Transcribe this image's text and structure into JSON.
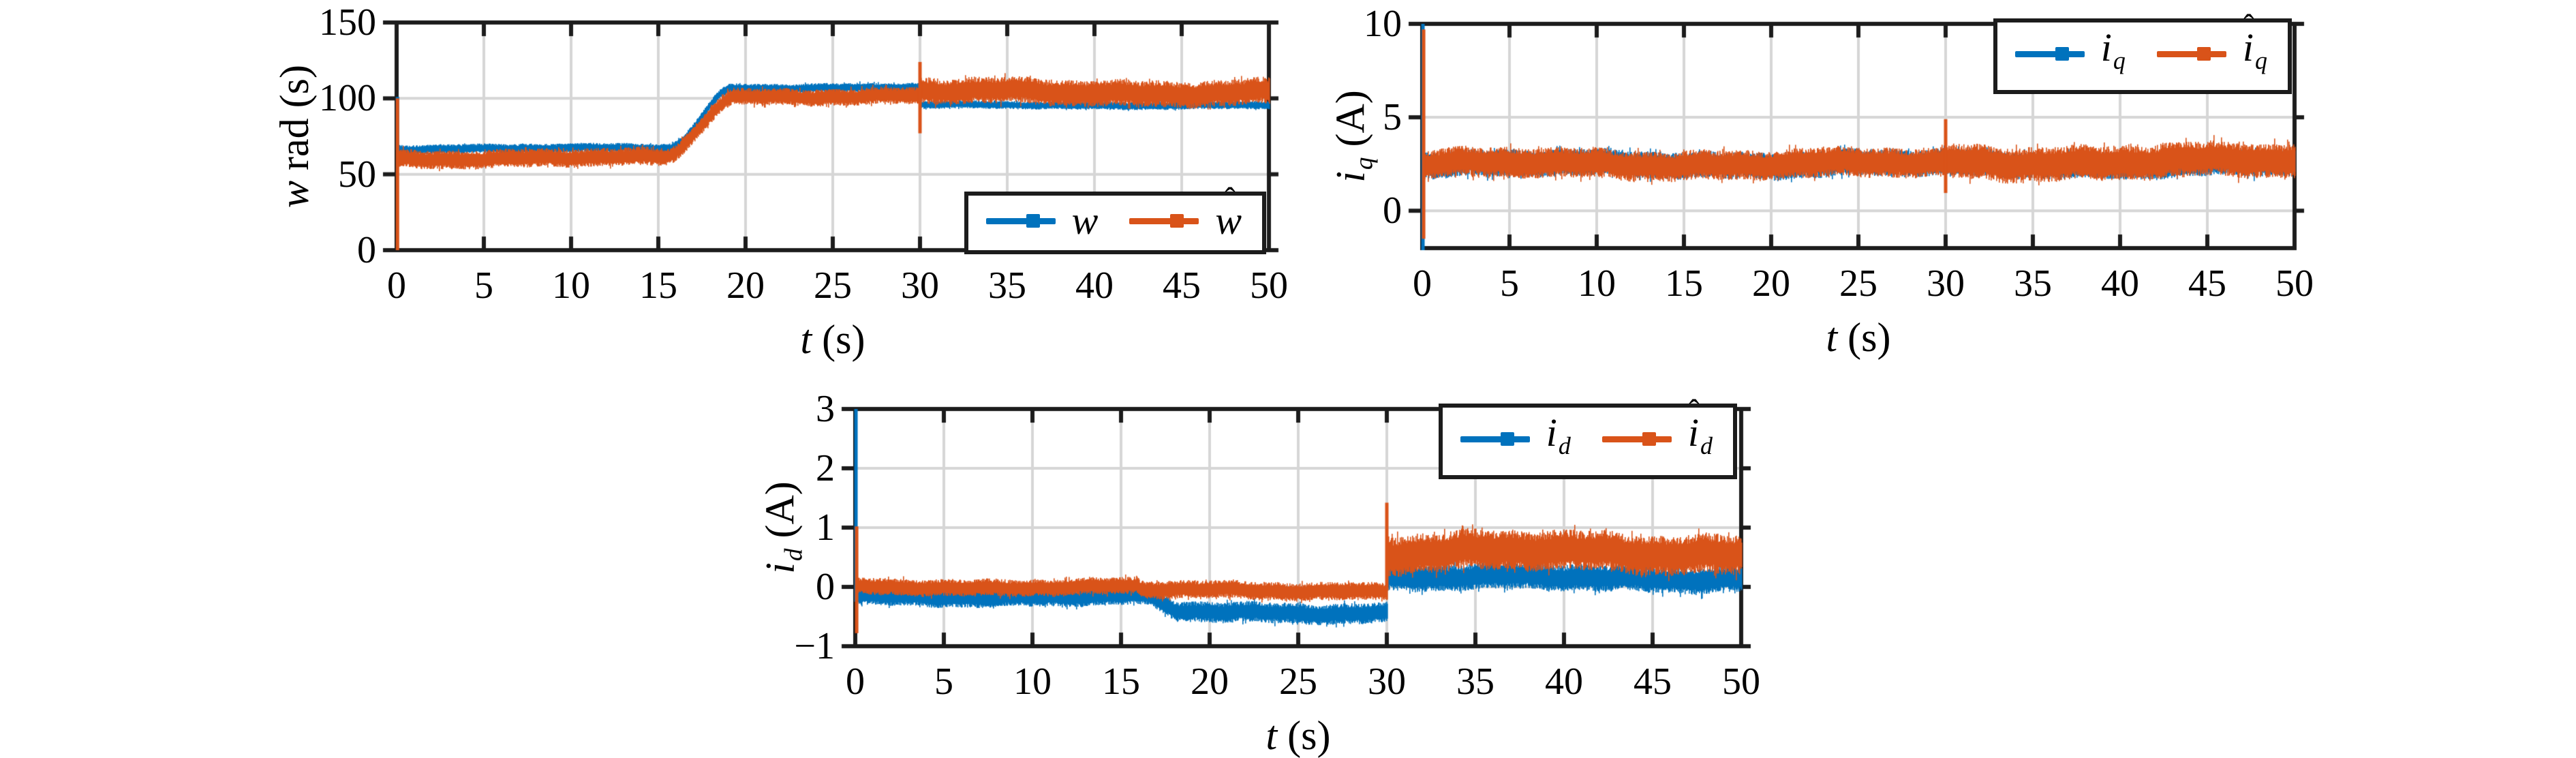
{
  "figure": {
    "background": "#ffffff"
  },
  "palette": {
    "blue": "#0072BD",
    "orange": "#D95319",
    "axis": "#1c1c1c",
    "grid": "#d6d6d6",
    "text": "#000000",
    "background": "#ffffff"
  },
  "chart_data": [
    {
      "id": "speed",
      "type": "line",
      "xlabel_parts": [
        {
          "text": "t",
          "italic": true
        },
        {
          "text": " (s)"
        }
      ],
      "ylabel_parts": [
        {
          "text": "w",
          "italic": true
        },
        {
          "text": " rad (s)"
        }
      ],
      "xlim": [
        0,
        50
      ],
      "ylim": [
        0,
        150
      ],
      "xticks": [
        0,
        5,
        10,
        15,
        20,
        25,
        30,
        35,
        40,
        45,
        50
      ],
      "yticks": [
        0,
        50,
        100,
        150
      ],
      "grid": true,
      "legend": {
        "position": "bottom-right",
        "entries": [
          {
            "color": "#0072BD",
            "label_parts": [
              {
                "text": "w",
                "italic": true
              }
            ]
          },
          {
            "color": "#D95319",
            "label_parts": [
              {
                "text": "w",
                "italic": true,
                "hat": true
              }
            ]
          }
        ]
      },
      "series": [
        {
          "name": "w",
          "color": "#0072BD",
          "segments": [
            {
              "t0": 0,
              "t1": 15.5,
              "y0": 67,
              "y1": 67,
              "amp0": 3.0,
              "amp1": 3.0
            },
            {
              "t0": 15.5,
              "t1": 19.3,
              "y0": 67,
              "y1": 107,
              "amp0": 3.0,
              "amp1": 3.0,
              "ease": "smooth"
            },
            {
              "t0": 19.3,
              "t1": 30,
              "y0": 107,
              "y1": 107,
              "amp0": 3.0,
              "amp1": 3.0
            },
            {
              "t0": 30,
              "t1": 50,
              "y0": 95.5,
              "y1": 95.5,
              "amp0": 2.6,
              "amp1": 2.6
            }
          ],
          "spikes": [
            {
              "t": 0.05,
              "y0": 66,
              "y1": 101
            }
          ]
        },
        {
          "name": "w_hat",
          "color": "#D95319",
          "segments": [
            {
              "t0": 0,
              "t1": 15.2,
              "y0": 60.5,
              "y1": 60.5,
              "amp0": 6.0,
              "amp1": 6.0
            },
            {
              "t0": 15.2,
              "t1": 19.5,
              "y0": 60.5,
              "y1": 101.5,
              "amp0": 5.5,
              "amp1": 5.5,
              "ease": "smooth"
            },
            {
              "t0": 19.5,
              "t1": 30,
              "y0": 101.5,
              "y1": 101.5,
              "amp0": 5.5,
              "amp1": 5.5
            },
            {
              "t0": 30,
              "t1": 50,
              "y0": 104,
              "y1": 104,
              "amp0": 8.5,
              "amp1": 8.5
            }
          ],
          "spikes": [
            {
              "t": 0.05,
              "y0": 0,
              "y1": 100
            },
            {
              "t": 30,
              "y0": 77,
              "y1": 124
            }
          ]
        }
      ]
    },
    {
      "id": "iq",
      "type": "line",
      "xlabel_parts": [
        {
          "text": "t",
          "italic": true
        },
        {
          "text": " (s)"
        }
      ],
      "ylabel_parts": [
        {
          "text": "i",
          "italic": true
        },
        {
          "text": "q",
          "italic": true,
          "sub": true
        },
        {
          "text": " (A)"
        }
      ],
      "xlim": [
        0,
        50
      ],
      "ylim": [
        -2,
        10
      ],
      "xticks": [
        0,
        5,
        10,
        15,
        20,
        25,
        30,
        35,
        40,
        45,
        50
      ],
      "yticks": [
        0,
        5,
        10
      ],
      "grid": true,
      "legend": {
        "position": "top-right",
        "entries": [
          {
            "color": "#0072BD",
            "label_parts": [
              {
                "text": "i",
                "italic": true
              },
              {
                "text": "q",
                "italic": true,
                "sub": true
              }
            ]
          },
          {
            "color": "#D95319",
            "label_parts": [
              {
                "text": "i",
                "italic": true,
                "hat": true
              },
              {
                "text": "q",
                "italic": true,
                "sub": true
              }
            ]
          }
        ]
      },
      "series": [
        {
          "name": "iq",
          "color": "#0072BD",
          "segments": [
            {
              "t0": 0,
              "t1": 50,
              "y0": 2.5,
              "y1": 2.5,
              "amp0": 0.7,
              "amp1": 0.7
            }
          ],
          "spikes": [
            {
              "t": 0.04,
              "y0": -2.2,
              "y1": 10
            }
          ]
        },
        {
          "name": "iq_hat",
          "color": "#D95319",
          "segments": [
            {
              "t0": 0,
              "t1": 30,
              "y0": 2.5,
              "y1": 2.5,
              "amp0": 0.78,
              "amp1": 0.78
            },
            {
              "t0": 30,
              "t1": 50,
              "y0": 2.62,
              "y1": 2.62,
              "amp0": 0.92,
              "amp1": 0.92
            }
          ],
          "spikes": [
            {
              "t": 0.08,
              "y0": -1.5,
              "y1": 9.7
            },
            {
              "t": 30,
              "y0": 0.95,
              "y1": 4.9
            }
          ]
        }
      ]
    },
    {
      "id": "id",
      "type": "line",
      "xlabel_parts": [
        {
          "text": "t",
          "italic": true
        },
        {
          "text": " (s)"
        }
      ],
      "ylabel_parts": [
        {
          "text": "i",
          "italic": true
        },
        {
          "text": "d",
          "italic": true,
          "sub": true
        },
        {
          "text": " (A)"
        }
      ],
      "xlim": [
        0,
        50
      ],
      "ylim": [
        -1,
        3
      ],
      "xticks": [
        0,
        5,
        10,
        15,
        20,
        25,
        30,
        35,
        40,
        45,
        50
      ],
      "yticks": [
        -1,
        0,
        1,
        2,
        3
      ],
      "grid": true,
      "legend": {
        "position": "top-right",
        "entries": [
          {
            "color": "#0072BD",
            "label_parts": [
              {
                "text": "i",
                "italic": true
              },
              {
                "text": "d",
                "italic": true,
                "sub": true
              }
            ]
          },
          {
            "color": "#D95319",
            "label_parts": [
              {
                "text": "i",
                "italic": true,
                "hat": true
              },
              {
                "text": "d",
                "italic": true,
                "sub": true
              }
            ]
          }
        ]
      },
      "series": [
        {
          "name": "id",
          "color": "#0072BD",
          "segments": [
            {
              "t0": 0,
              "t1": 16,
              "y0": -0.17,
              "y1": -0.17,
              "amp0": 0.15,
              "amp1": 0.15
            },
            {
              "t0": 16,
              "t1": 18.5,
              "y0": -0.17,
              "y1": -0.43,
              "amp0": 0.16,
              "amp1": 0.16,
              "ease": "smooth"
            },
            {
              "t0": 18.5,
              "t1": 30,
              "y0": -0.43,
              "y1": -0.43,
              "amp0": 0.17,
              "amp1": 0.17
            },
            {
              "t0": 30,
              "t1": 50,
              "y0": 0.15,
              "y1": 0.15,
              "amp0": 0.22,
              "amp1": 0.22
            }
          ],
          "spikes": [
            {
              "t": 0.04,
              "y0": -0.25,
              "y1": 3.0
            }
          ]
        },
        {
          "name": "id_hat",
          "color": "#D95319",
          "segments": [
            {
              "t0": 0,
              "t1": 16,
              "y0": 0.0,
              "y1": 0.0,
              "amp0": 0.14,
              "amp1": 0.14
            },
            {
              "t0": 16,
              "t1": 30,
              "y0": -0.06,
              "y1": -0.06,
              "amp0": 0.15,
              "amp1": 0.15
            },
            {
              "t0": 30,
              "t1": 50,
              "y0": 0.58,
              "y1": 0.58,
              "amp0": 0.33,
              "amp1": 0.33
            }
          ],
          "spikes": [
            {
              "t": 0.08,
              "y0": -0.78,
              "y1": 1.02
            },
            {
              "t": 30,
              "y0": -0.06,
              "y1": 1.42
            }
          ]
        }
      ]
    }
  ]
}
